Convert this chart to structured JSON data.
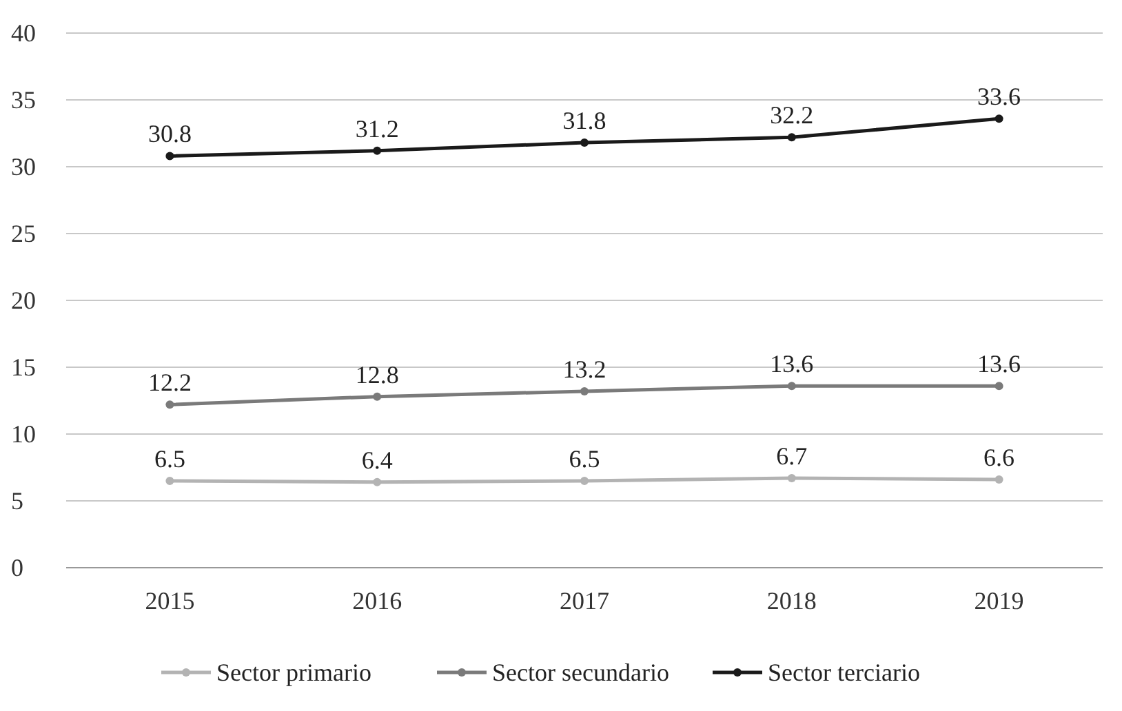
{
  "chart_data": {
    "type": "line",
    "categories": [
      "2015",
      "2016",
      "2017",
      "2018",
      "2019"
    ],
    "series": [
      {
        "name": "Sector primario",
        "color": "#b3b3b3",
        "values": [
          6.5,
          6.4,
          6.5,
          6.7,
          6.6
        ]
      },
      {
        "name": "Sector secundario",
        "color": "#7a7a7a",
        "values": [
          12.2,
          12.8,
          13.2,
          13.6,
          13.6
        ]
      },
      {
        "name": "Sector terciario",
        "color": "#1a1a1a",
        "values": [
          30.8,
          31.2,
          31.8,
          32.2,
          33.6
        ]
      }
    ],
    "ylim": [
      0,
      40
    ],
    "yticks": [
      0,
      5,
      10,
      15,
      20,
      25,
      30,
      35,
      40
    ],
    "grid": "y",
    "legend": "bottom",
    "marker": "circle",
    "line_style": "solid",
    "data_labels": true
  }
}
